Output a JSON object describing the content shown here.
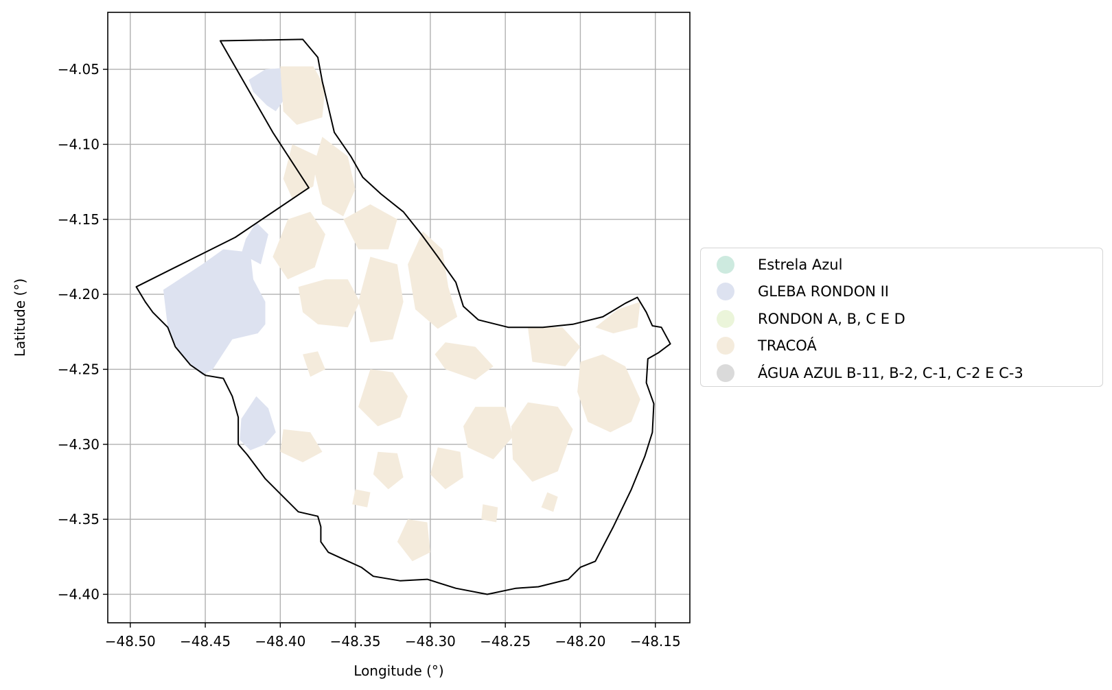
{
  "chart_data": {
    "type": "map",
    "xlabel": "Longitude (°)",
    "ylabel": "Latitude (°)",
    "xlim": [
      -48.515,
      -48.127
    ],
    "ylim": [
      -4.419,
      -4.012
    ],
    "xticks": [
      -48.5,
      -48.45,
      -48.4,
      -48.35,
      -48.3,
      -48.25,
      -48.2,
      -48.15
    ],
    "xtick_labels": [
      "−48.50",
      "−48.45",
      "−48.40",
      "−48.35",
      "−48.30",
      "−48.25",
      "−48.20",
      "−48.15"
    ],
    "yticks": [
      -4.05,
      -4.1,
      -4.15,
      -4.2,
      -4.25,
      -4.3,
      -4.35,
      -4.4
    ],
    "ytick_labels": [
      "−4.05",
      "−4.10",
      "−4.15",
      "−4.20",
      "−4.25",
      "−4.30",
      "−4.35",
      "−4.40"
    ],
    "grid": true,
    "legend_position": "right, outside",
    "legend": [
      {
        "label": "Estrela Azul",
        "color": "#cdeadf"
      },
      {
        "label": "GLEBA RONDON II",
        "color": "#dde2f0"
      },
      {
        "label": "RONDON A, B, C E D",
        "color": "#ebf5da"
      },
      {
        "label": "TRACOÁ",
        "color": "#f4ebdc"
      },
      {
        "label": "ÁGUA AZUL B-11, B-2, C-1, C-2 E C-3",
        "color": "#dadada"
      }
    ],
    "boundary_color": "#000000",
    "boundary": [
      [
        -48.44,
        -4.031
      ],
      [
        -48.385,
        -4.03
      ],
      [
        -48.375,
        -4.042
      ],
      [
        -48.372,
        -4.058
      ],
      [
        -48.368,
        -4.075
      ],
      [
        -48.364,
        -4.092
      ],
      [
        -48.353,
        -4.108
      ],
      [
        -48.345,
        -4.122
      ],
      [
        -48.333,
        -4.133
      ],
      [
        -48.318,
        -4.145
      ],
      [
        -48.306,
        -4.16
      ],
      [
        -48.295,
        -4.175
      ],
      [
        -48.283,
        -4.192
      ],
      [
        -48.278,
        -4.208
      ],
      [
        -48.268,
        -4.217
      ],
      [
        -48.248,
        -4.222
      ],
      [
        -48.225,
        -4.222
      ],
      [
        -48.205,
        -4.22
      ],
      [
        -48.185,
        -4.215
      ],
      [
        -48.17,
        -4.206
      ],
      [
        -48.162,
        -4.202
      ],
      [
        -48.156,
        -4.212
      ],
      [
        -48.152,
        -4.221
      ],
      [
        -48.146,
        -4.222
      ],
      [
        -48.14,
        -4.233
      ],
      [
        -48.148,
        -4.239
      ],
      [
        -48.155,
        -4.243
      ],
      [
        -48.156,
        -4.259
      ],
      [
        -48.151,
        -4.273
      ],
      [
        -48.152,
        -4.292
      ],
      [
        -48.157,
        -4.308
      ],
      [
        -48.166,
        -4.33
      ],
      [
        -48.178,
        -4.355
      ],
      [
        -48.19,
        -4.378
      ],
      [
        -48.2,
        -4.382
      ],
      [
        -48.208,
        -4.39
      ],
      [
        -48.228,
        -4.395
      ],
      [
        -48.243,
        -4.396
      ],
      [
        -48.262,
        -4.4
      ],
      [
        -48.283,
        -4.396
      ],
      [
        -48.302,
        -4.39
      ],
      [
        -48.32,
        -4.391
      ],
      [
        -48.338,
        -4.388
      ],
      [
        -48.346,
        -4.382
      ],
      [
        -48.357,
        -4.377
      ],
      [
        -48.368,
        -4.372
      ],
      [
        -48.373,
        -4.365
      ],
      [
        -48.373,
        -4.355
      ],
      [
        -48.375,
        -4.348
      ],
      [
        -48.388,
        -4.345
      ],
      [
        -48.398,
        -4.335
      ],
      [
        -48.41,
        -4.323
      ],
      [
        -48.422,
        -4.307
      ],
      [
        -48.428,
        -4.3
      ],
      [
        -48.428,
        -4.282
      ],
      [
        -48.432,
        -4.268
      ],
      [
        -48.438,
        -4.256
      ],
      [
        -48.45,
        -4.254
      ],
      [
        -48.46,
        -4.247
      ],
      [
        -48.47,
        -4.235
      ],
      [
        -48.475,
        -4.222
      ],
      [
        -48.485,
        -4.212
      ],
      [
        -48.49,
        -4.205
      ],
      [
        -48.496,
        -4.195
      ],
      [
        -48.47,
        -4.182
      ],
      [
        -48.43,
        -4.162
      ],
      [
        -48.381,
        -4.129
      ],
      [
        -48.405,
        -4.092
      ],
      [
        -48.44,
        -4.031
      ]
    ],
    "regions": [
      {
        "label": "GLEBA RONDON II",
        "polygons": [
          [
            [
              -48.41,
              -4.05
            ],
            [
              -48.397,
              -4.049
            ],
            [
              -48.396,
              -4.068
            ],
            [
              -48.403,
              -4.078
            ],
            [
              -48.409,
              -4.074
            ],
            [
              -48.418,
              -4.065
            ],
            [
              -48.421,
              -4.057
            ]
          ],
          [
            [
              -48.478,
              -4.197
            ],
            [
              -48.452,
              -4.18
            ],
            [
              -48.438,
              -4.17
            ],
            [
              -48.42,
              -4.172
            ],
            [
              -48.418,
              -4.19
            ],
            [
              -48.41,
              -4.205
            ],
            [
              -48.41,
              -4.22
            ],
            [
              -48.415,
              -4.226
            ],
            [
              -48.432,
              -4.23
            ],
            [
              -48.445,
              -4.25
            ],
            [
              -48.452,
              -4.254
            ],
            [
              -48.468,
              -4.238
            ],
            [
              -48.475,
              -4.222
            ]
          ],
          [
            [
              -48.408,
              -4.16
            ],
            [
              -48.416,
              -4.152
            ],
            [
              -48.423,
              -4.163
            ],
            [
              -48.426,
              -4.173
            ],
            [
              -48.413,
              -4.18
            ]
          ],
          [
            [
              -48.426,
              -4.283
            ],
            [
              -48.416,
              -4.268
            ],
            [
              -48.408,
              -4.276
            ],
            [
              -48.403,
              -4.292
            ],
            [
              -48.41,
              -4.3
            ],
            [
              -48.42,
              -4.304
            ],
            [
              -48.427,
              -4.297
            ]
          ]
        ]
      },
      {
        "label": "TRACOÁ",
        "polygons": [
          [
            [
              -48.4,
              -4.048
            ],
            [
              -48.378,
              -4.048
            ],
            [
              -48.37,
              -4.062
            ],
            [
              -48.372,
              -4.082
            ],
            [
              -48.389,
              -4.087
            ],
            [
              -48.398,
              -4.078
            ]
          ],
          [
            [
              -48.392,
              -4.1
            ],
            [
              -48.375,
              -4.108
            ],
            [
              -48.378,
              -4.128
            ],
            [
              -48.392,
              -4.136
            ],
            [
              -48.398,
              -4.123
            ]
          ],
          [
            [
              -48.372,
              -4.095
            ],
            [
              -48.355,
              -4.108
            ],
            [
              -48.35,
              -4.13
            ],
            [
              -48.358,
              -4.148
            ],
            [
              -48.372,
              -4.14
            ],
            [
              -48.378,
              -4.115
            ]
          ],
          [
            [
              -48.358,
              -4.15
            ],
            [
              -48.34,
              -4.14
            ],
            [
              -48.322,
              -4.15
            ],
            [
              -48.328,
              -4.17
            ],
            [
              -48.348,
              -4.17
            ]
          ],
          [
            [
              -48.395,
              -4.15
            ],
            [
              -48.38,
              -4.145
            ],
            [
              -48.37,
              -4.16
            ],
            [
              -48.377,
              -4.182
            ],
            [
              -48.395,
              -4.19
            ],
            [
              -48.405,
              -4.175
            ]
          ],
          [
            [
              -48.388,
              -4.195
            ],
            [
              -48.37,
              -4.19
            ],
            [
              -48.355,
              -4.19
            ],
            [
              -48.347,
              -4.205
            ],
            [
              -48.355,
              -4.222
            ],
            [
              -48.375,
              -4.22
            ],
            [
              -48.385,
              -4.212
            ]
          ],
          [
            [
              -48.34,
              -4.175
            ],
            [
              -48.322,
              -4.18
            ],
            [
              -48.318,
              -4.205
            ],
            [
              -48.325,
              -4.23
            ],
            [
              -48.34,
              -4.232
            ],
            [
              -48.348,
              -4.205
            ]
          ],
          [
            [
              -48.305,
              -4.158
            ],
            [
              -48.292,
              -4.17
            ],
            [
              -48.288,
              -4.195
            ],
            [
              -48.282,
              -4.215
            ],
            [
              -48.295,
              -4.223
            ],
            [
              -48.31,
              -4.21
            ],
            [
              -48.315,
              -4.18
            ]
          ],
          [
            [
              -48.29,
              -4.232
            ],
            [
              -48.27,
              -4.235
            ],
            [
              -48.258,
              -4.248
            ],
            [
              -48.27,
              -4.257
            ],
            [
              -48.29,
              -4.25
            ],
            [
              -48.297,
              -4.24
            ]
          ],
          [
            [
              -48.235,
              -4.222
            ],
            [
              -48.212,
              -4.222
            ],
            [
              -48.2,
              -4.235
            ],
            [
              -48.21,
              -4.248
            ],
            [
              -48.232,
              -4.245
            ]
          ],
          [
            [
              -48.16,
              -4.205
            ],
            [
              -48.175,
              -4.21
            ],
            [
              -48.19,
              -4.222
            ],
            [
              -48.178,
              -4.226
            ],
            [
              -48.162,
              -4.222
            ]
          ],
          [
            [
              -48.2,
              -4.245
            ],
            [
              -48.185,
              -4.24
            ],
            [
              -48.17,
              -4.248
            ],
            [
              -48.16,
              -4.27
            ],
            [
              -48.166,
              -4.285
            ],
            [
              -48.18,
              -4.292
            ],
            [
              -48.195,
              -4.285
            ],
            [
              -48.202,
              -4.265
            ]
          ],
          [
            [
              -48.235,
              -4.272
            ],
            [
              -48.215,
              -4.275
            ],
            [
              -48.205,
              -4.29
            ],
            [
              -48.215,
              -4.318
            ],
            [
              -48.232,
              -4.325
            ],
            [
              -48.245,
              -4.31
            ],
            [
              -48.246,
              -4.288
            ]
          ],
          [
            [
              -48.27,
              -4.275
            ],
            [
              -48.25,
              -4.275
            ],
            [
              -48.245,
              -4.295
            ],
            [
              -48.258,
              -4.31
            ],
            [
              -48.275,
              -4.302
            ],
            [
              -48.278,
              -4.288
            ]
          ],
          [
            [
              -48.34,
              -4.25
            ],
            [
              -48.325,
              -4.252
            ],
            [
              -48.315,
              -4.268
            ],
            [
              -48.32,
              -4.282
            ],
            [
              -48.335,
              -4.288
            ],
            [
              -48.348,
              -4.275
            ]
          ],
          [
            [
              -48.385,
              -4.24
            ],
            [
              -48.375,
              -4.238
            ],
            [
              -48.37,
              -4.25
            ],
            [
              -48.38,
              -4.255
            ]
          ],
          [
            [
              -48.398,
              -4.29
            ],
            [
              -48.38,
              -4.292
            ],
            [
              -48.372,
              -4.305
            ],
            [
              -48.385,
              -4.312
            ],
            [
              -48.4,
              -4.305
            ]
          ],
          [
            [
              -48.295,
              -4.302
            ],
            [
              -48.28,
              -4.305
            ],
            [
              -48.278,
              -4.322
            ],
            [
              -48.29,
              -4.33
            ],
            [
              -48.3,
              -4.32
            ]
          ],
          [
            [
              -48.335,
              -4.305
            ],
            [
              -48.322,
              -4.306
            ],
            [
              -48.318,
              -4.322
            ],
            [
              -48.328,
              -4.33
            ],
            [
              -48.338,
              -4.32
            ]
          ],
          [
            [
              -48.315,
              -4.35
            ],
            [
              -48.302,
              -4.352
            ],
            [
              -48.3,
              -4.372
            ],
            [
              -48.312,
              -4.378
            ],
            [
              -48.322,
              -4.365
            ]
          ],
          [
            [
              -48.222,
              -4.332
            ],
            [
              -48.215,
              -4.335
            ],
            [
              -48.218,
              -4.345
            ],
            [
              -48.226,
              -4.342
            ]
          ],
          [
            [
              -48.35,
              -4.33
            ],
            [
              -48.34,
              -4.332
            ],
            [
              -48.342,
              -4.342
            ],
            [
              -48.352,
              -4.34
            ]
          ],
          [
            [
              -48.265,
              -4.34
            ],
            [
              -48.255,
              -4.342
            ],
            [
              -48.256,
              -4.352
            ],
            [
              -48.266,
              -4.35
            ]
          ]
        ]
      }
    ]
  }
}
